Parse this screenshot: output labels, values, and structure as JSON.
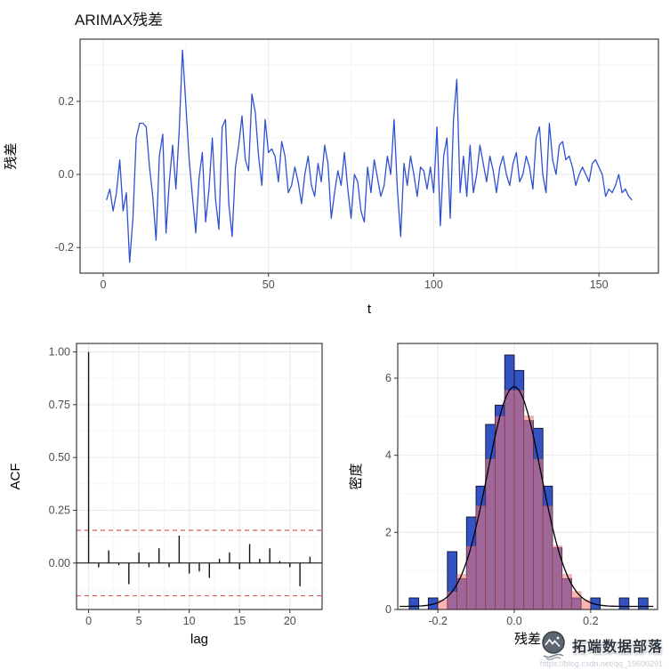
{
  "watermark": {
    "brand": "拓端数据部落",
    "url": "https://blog.csdn.net/qq_19600291"
  },
  "chart_data": [
    {
      "type": "line",
      "title": "ARIMAX残差",
      "xlabel": "t",
      "ylabel": "残差",
      "xlim": [
        -7,
        168
      ],
      "ylim": [
        -0.27,
        0.37
      ],
      "xticks": [
        0,
        50,
        100,
        150
      ],
      "xticklabels": [
        "0",
        "50",
        "100",
        "150"
      ],
      "yticks": [
        -0.2,
        0.0,
        0.2
      ],
      "yticklabels": [
        "-0.2",
        "0.0",
        "0.2"
      ],
      "line_color": "#3050d0",
      "x_start": 1,
      "values": [
        -0.07,
        -0.04,
        -0.1,
        -0.05,
        0.04,
        -0.1,
        -0.05,
        -0.24,
        -0.12,
        0.1,
        0.14,
        0.14,
        0.13,
        0.02,
        -0.06,
        -0.18,
        0.05,
        0.11,
        -0.16,
        -0.02,
        0.08,
        -0.04,
        0.12,
        0.34,
        0.19,
        0.04,
        -0.06,
        -0.16,
        -0.01,
        0.06,
        -0.13,
        -0.04,
        0.1,
        -0.07,
        -0.15,
        0.13,
        0.15,
        -0.08,
        -0.17,
        0.02,
        0.08,
        0.16,
        0.04,
        0.01,
        0.22,
        0.17,
        0.05,
        -0.03,
        0.15,
        0.06,
        0.07,
        0.05,
        -0.02,
        0.09,
        0.05,
        -0.05,
        -0.03,
        0.02,
        -0.02,
        -0.08,
        0.0,
        0.05,
        -0.03,
        -0.06,
        0.03,
        -0.02,
        0.08,
        0.03,
        -0.12,
        -0.05,
        0.01,
        -0.03,
        0.06,
        -0.04,
        -0.12,
        0.0,
        -0.02,
        -0.1,
        -0.13,
        0.02,
        -0.05,
        0.04,
        -0.01,
        -0.06,
        -0.03,
        0.05,
        0.0,
        0.15,
        -0.04,
        -0.17,
        0.03,
        -0.03,
        0.05,
        0.0,
        -0.06,
        0.02,
        0.01,
        -0.04,
        0.02,
        -0.05,
        0.13,
        -0.14,
        0.05,
        0.1,
        -0.12,
        0.15,
        0.26,
        -0.05,
        0.05,
        -0.06,
        0.08,
        -0.05,
        0.0,
        0.08,
        0.03,
        -0.02,
        0.05,
        0.01,
        -0.05,
        0.02,
        0.05,
        0.0,
        -0.03,
        0.03,
        0.06,
        -0.02,
        0.0,
        0.05,
        0.02,
        -0.04,
        0.1,
        0.13,
        0.0,
        -0.05,
        0.14,
        0.04,
        0.0,
        0.08,
        0.09,
        0.04,
        0.05,
        0.02,
        -0.03,
        0.0,
        0.02,
        0.0,
        -0.02,
        0.03,
        0.04,
        0.02,
        0.0,
        -0.06,
        -0.04,
        -0.05,
        -0.03,
        0.0,
        -0.05,
        -0.04,
        -0.06,
        -0.07
      ]
    },
    {
      "type": "bar",
      "title": "",
      "xlabel": "lag",
      "ylabel": "ACF",
      "xlim": [
        -1.2,
        23.2
      ],
      "ylim": [
        -0.22,
        1.04
      ],
      "xticks": [
        0,
        5,
        10,
        15,
        20
      ],
      "xticklabels": [
        "0",
        "5",
        "10",
        "15",
        "20"
      ],
      "yticks": [
        0.0,
        0.25,
        0.5,
        0.75,
        1.0
      ],
      "yticklabels": [
        "0.00",
        "0.25",
        "0.50",
        "0.75",
        "1.00"
      ],
      "conf_band": 0.155,
      "band_color": "#de5b5b",
      "bar_color": "#111111",
      "lags": [
        0,
        1,
        2,
        3,
        4,
        5,
        6,
        7,
        8,
        9,
        10,
        11,
        12,
        13,
        14,
        15,
        16,
        17,
        18,
        19,
        20,
        21,
        22
      ],
      "values": [
        1.0,
        -0.02,
        0.06,
        -0.01,
        -0.1,
        0.05,
        -0.02,
        0.07,
        -0.02,
        0.13,
        -0.05,
        -0.04,
        -0.07,
        0.02,
        0.05,
        -0.03,
        0.09,
        0.02,
        0.07,
        0.01,
        -0.02,
        -0.11,
        0.03
      ]
    },
    {
      "type": "histogram",
      "title": "",
      "xlabel": "残差",
      "ylabel": "密度",
      "xlim": [
        -0.305,
        0.375
      ],
      "ylim": [
        0,
        6.9
      ],
      "xticks": [
        -0.2,
        0.0,
        0.2
      ],
      "xticklabels": [
        "-0.2",
        "0.0",
        "0.2"
      ],
      "yticks": [
        0,
        2,
        4,
        6
      ],
      "yticklabels": [
        "0",
        "2",
        "4",
        "6"
      ],
      "bar_color": "#3353c4",
      "bar_edge": "#101030",
      "density_fill_rgba": "247,118,118,0.55",
      "density_line": "#000000",
      "bin_start": -0.275,
      "bin_width": 0.025,
      "bin_heights": [
        0.3,
        0,
        0.3,
        0,
        1.5,
        0.8,
        2.4,
        3.2,
        4.8,
        5.3,
        6.6,
        6.2,
        4.9,
        4.7,
        3.2,
        1.6,
        0.8,
        0.3,
        0,
        0.3,
        0,
        0,
        0.3,
        0,
        0.3
      ],
      "density": {
        "mean": 0.0,
        "sd": 0.07,
        "peak": 5.7,
        "baseline": 0.08
      }
    }
  ]
}
